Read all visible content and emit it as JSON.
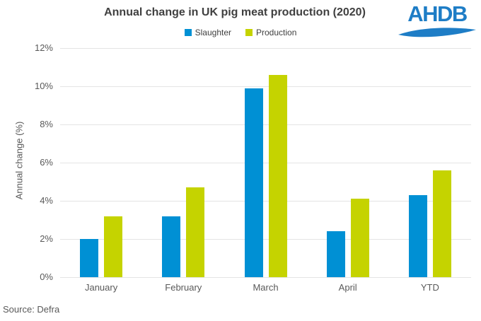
{
  "header": {
    "title": "Annual change in UK pig meat production (2020)",
    "logo_text": "AHDB"
  },
  "footer": {
    "source": "Source: Defra"
  },
  "colors": {
    "slaughter_blue": "#0090d4",
    "production_green": "#c5d300",
    "logo_blue": "#1e7dc6",
    "gridline": "#e4e4e4",
    "title_text": "#404040",
    "axis_text": "#595959"
  },
  "chart_data": {
    "type": "bar",
    "title": "Annual change in UK pig meat production (2020)",
    "categories": [
      "January",
      "February",
      "March",
      "April",
      "YTD"
    ],
    "series": [
      {
        "name": "Slaughter",
        "color": "#0090d4",
        "values": [
          2.0,
          3.2,
          9.9,
          2.4,
          4.3
        ]
      },
      {
        "name": "Production",
        "color": "#c5d300",
        "values": [
          3.2,
          4.7,
          10.6,
          4.1,
          5.6
        ]
      }
    ],
    "xlabel": "",
    "ylabel": "Annual change (%)",
    "ylim": [
      0,
      12
    ],
    "ytick_step": 2,
    "ytick_suffix": "%",
    "grid": true,
    "legend_position": "top-center",
    "source": "Source: Defra"
  }
}
